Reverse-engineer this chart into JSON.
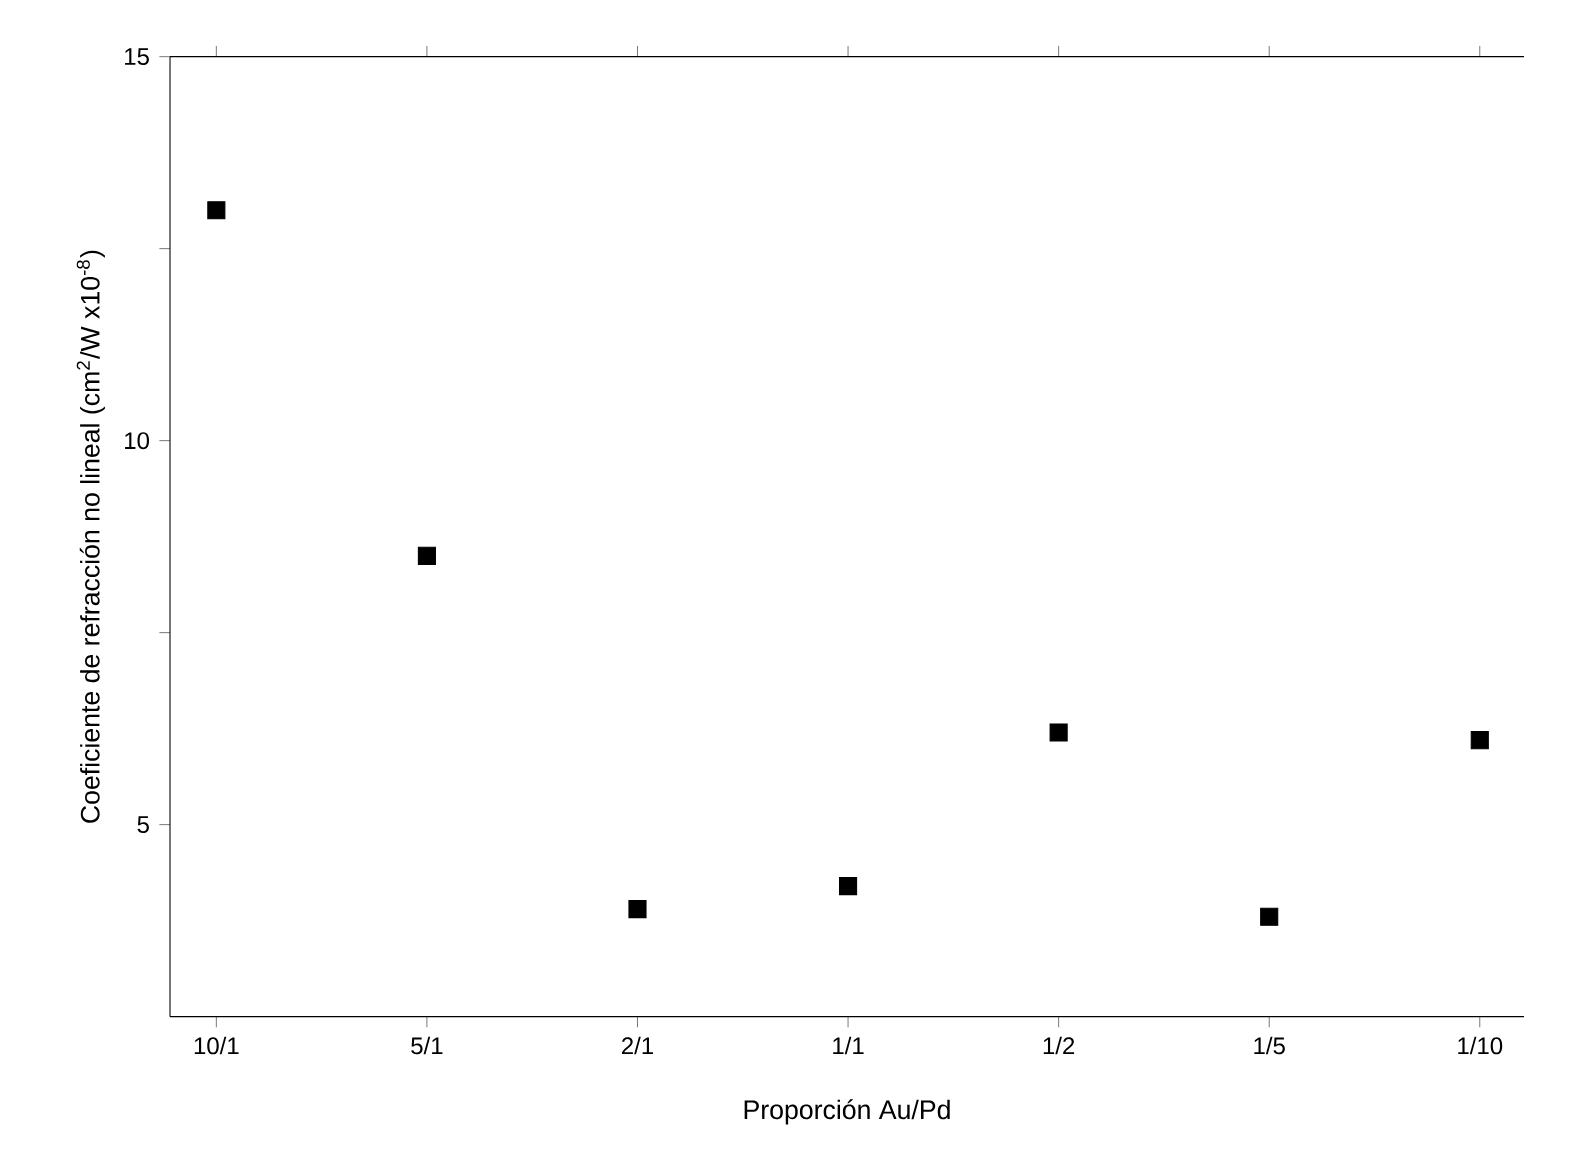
{
  "chart_data": {
    "type": "scatter",
    "xlabel": "Proporción Au/Pd",
    "ylabel": "Coeficiente de refracción no lineal (cm$^{2}$/W x10$^{-8}$)",
    "categories": [
      "10/1",
      "5/1",
      "2/1",
      "1/1",
      "1/2",
      "1/5",
      "1/10"
    ],
    "values": [
      13.0,
      8.5,
      3.9,
      4.2,
      6.2,
      3.8,
      6.1
    ],
    "color": "#000000",
    "marker": "square",
    "ylim": [
      2.5,
      15
    ],
    "yticks": [
      {
        "value": 7.5,
        "label": null
      },
      5,
      10,
      {
        "value": 12.5,
        "label": null
      },
      15
    ]
  }
}
